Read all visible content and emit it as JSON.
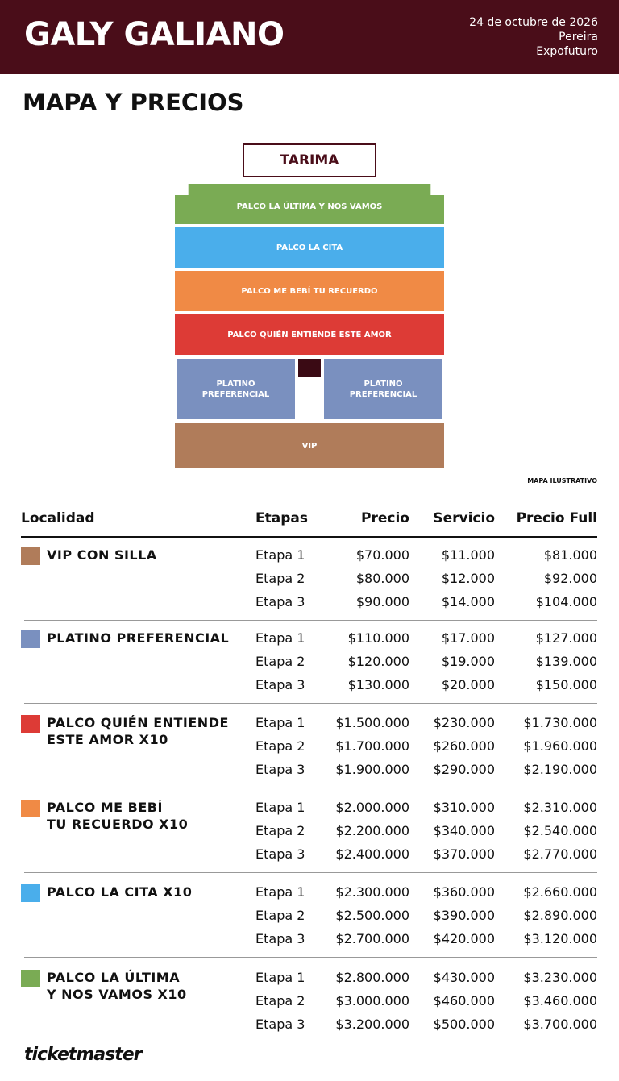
{
  "header": {
    "title": "GALY GALIANO",
    "date": "24 de octubre de 2026",
    "city": "Pereira",
    "venue": "Expofuturo"
  },
  "section_title": "MAPA Y PRECIOS",
  "map": {
    "stage": "TARIMA",
    "sections": [
      {
        "label": "PALCO LA ÚLTIMA Y NOS VAMOS",
        "color": "#7aab54"
      },
      {
        "label": "PALCO LA CITA",
        "color": "#4aaeeb"
      },
      {
        "label": "PALCO ME BEBÍ TU RECUERDO",
        "color": "#f08a45"
      },
      {
        "label": "PALCO QUIÉN ENTIENDE ESTE AMOR",
        "color": "#dd3b36"
      },
      {
        "label": "PLATINO\nPREFERENCIAL",
        "color": "#7a90bf"
      },
      {
        "label": "PLATINO\nPREFERENCIAL",
        "color": "#7a90bf"
      },
      {
        "label": "VIP",
        "color": "#b07c5a"
      }
    ],
    "note": "MAPA ILUSTRATIVO"
  },
  "table": {
    "columns": [
      "Localidad",
      "Etapas",
      "Precio",
      "Servicio",
      "Precio Full"
    ],
    "groups": [
      {
        "name": "VIP CON SILLA",
        "color": "#b07c5a",
        "rows": [
          [
            "Etapa 1",
            "$70.000",
            "$11.000",
            "$81.000"
          ],
          [
            "Etapa 2",
            "$80.000",
            "$12.000",
            "$92.000"
          ],
          [
            "Etapa 3",
            "$90.000",
            "$14.000",
            "$104.000"
          ]
        ]
      },
      {
        "name": "PLATINO PREFERENCIAL",
        "color": "#7a90bf",
        "rows": [
          [
            "Etapa 1",
            "$110.000",
            "$17.000",
            "$127.000"
          ],
          [
            "Etapa 2",
            "$120.000",
            "$19.000",
            "$139.000"
          ],
          [
            "Etapa 3",
            "$130.000",
            "$20.000",
            "$150.000"
          ]
        ]
      },
      {
        "name": "PALCO QUIÉN ENTIENDE\nESTE AMOR X10",
        "color": "#dd3b36",
        "rows": [
          [
            "Etapa 1",
            "$1.500.000",
            "$230.000",
            "$1.730.000"
          ],
          [
            "Etapa 2",
            "$1.700.000",
            "$260.000",
            "$1.960.000"
          ],
          [
            "Etapa 3",
            "$1.900.000",
            "$290.000",
            "$2.190.000"
          ]
        ]
      },
      {
        "name": "PALCO ME BEBÍ\nTU RECUERDO X10",
        "color": "#f08a45",
        "rows": [
          [
            "Etapa 1",
            "$2.000.000",
            "$310.000",
            "$2.310.000"
          ],
          [
            "Etapa 2",
            "$2.200.000",
            "$340.000",
            "$2.540.000"
          ],
          [
            "Etapa 3",
            "$2.400.000",
            "$370.000",
            "$2.770.000"
          ]
        ]
      },
      {
        "name": "PALCO LA CITA X10",
        "color": "#4aaeeb",
        "rows": [
          [
            "Etapa 1",
            "$2.300.000",
            "$360.000",
            "$2.660.000"
          ],
          [
            "Etapa 2",
            "$2.500.000",
            "$390.000",
            "$2.890.000"
          ],
          [
            "Etapa 3",
            "$2.700.000",
            "$420.000",
            "$3.120.000"
          ]
        ]
      },
      {
        "name": "PALCO LA ÚLTIMA\nY NOS VAMOS X10",
        "color": "#7aab54",
        "rows": [
          [
            "Etapa 1",
            "$2.800.000",
            "$430.000",
            "$3.230.000"
          ],
          [
            "Etapa 2",
            "$3.000.000",
            "$460.000",
            "$3.460.000"
          ],
          [
            "Etapa 3",
            "$3.200.000",
            "$500.000",
            "$3.700.000"
          ]
        ]
      }
    ]
  },
  "footer": {
    "brand": "ticketmaster"
  }
}
